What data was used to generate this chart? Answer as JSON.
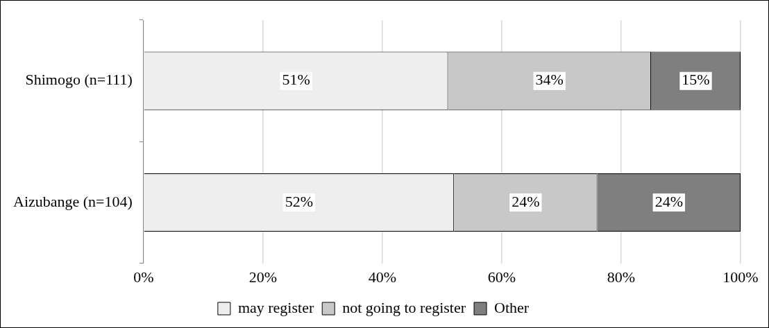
{
  "chart_data": {
    "type": "bar",
    "orientation": "horizontal",
    "stacked": true,
    "categories": [
      "Shimogo (n=111)",
      "Aizubange (n=104)"
    ],
    "series": [
      {
        "name": "may register",
        "color": "#eeeeee",
        "values": [
          51,
          52
        ],
        "value_labels": [
          "51%",
          "52%"
        ]
      },
      {
        "name": "not going to register",
        "color": "#c8c8c8",
        "values": [
          34,
          24
        ],
        "value_labels": [
          "34%",
          "24%"
        ]
      },
      {
        "name": "Other",
        "color": "#7f7f7f",
        "values": [
          15,
          24
        ],
        "value_labels": [
          "15%",
          "24%"
        ]
      }
    ],
    "xlim": [
      0,
      100
    ],
    "xticks": [
      {
        "value": 0,
        "label": "0%"
      },
      {
        "value": 20,
        "label": "20%"
      },
      {
        "value": 40,
        "label": "40%"
      },
      {
        "value": 60,
        "label": "60%"
      },
      {
        "value": 80,
        "label": "80%"
      },
      {
        "value": 100,
        "label": "100%"
      }
    ],
    "grid": "x",
    "legend": "bottom"
  }
}
